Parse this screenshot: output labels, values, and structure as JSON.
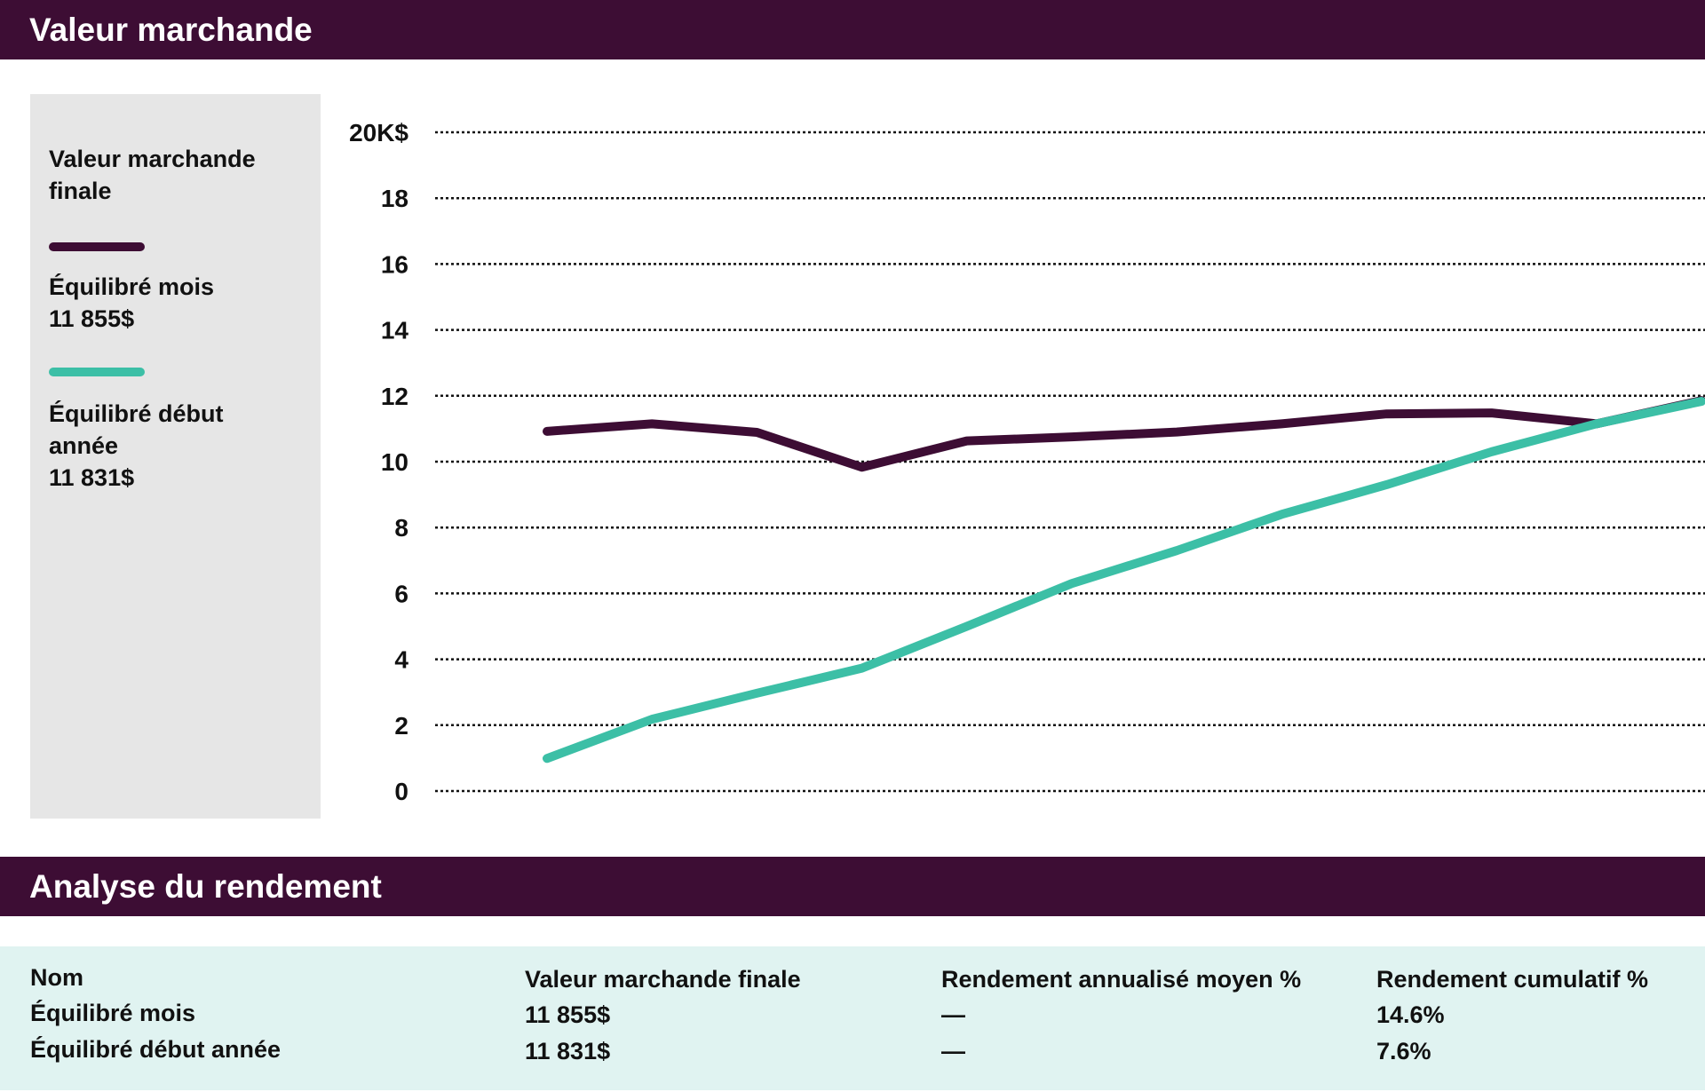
{
  "sections": {
    "market_value": "Valeur marchande",
    "performance": "Analyse du rendement"
  },
  "legend": {
    "title": "Valeur marchande finale",
    "items": [
      {
        "name": "Équilibré mois",
        "value": "11 855$",
        "color": "#3d0d34"
      },
      {
        "name_line1": "Équilibré début",
        "name_line2": "année",
        "value": "11 831$",
        "color": "#3cbfa6"
      }
    ]
  },
  "chart_data": {
    "type": "line",
    "title": "Valeur marchande",
    "ylabel": "",
    "xlabel": "",
    "ylim": [
      0,
      20
    ],
    "y_ticks": [
      "0",
      "2",
      "4",
      "6",
      "8",
      "10",
      "12",
      "14",
      "16",
      "18",
      "20K$"
    ],
    "x": [
      1,
      2,
      3,
      4,
      5,
      6,
      7,
      8,
      9,
      10,
      11,
      12
    ],
    "grid": true,
    "legend_position": "left",
    "series": [
      {
        "name": "Équilibré mois",
        "color": "#3d0d34",
        "values": [
          10.92,
          11.15,
          10.89,
          9.83,
          10.63,
          10.75,
          10.9,
          11.15,
          11.45,
          11.48,
          11.15,
          11.855
        ]
      },
      {
        "name": "Équilibré début année",
        "color": "#3cbfa6",
        "values": [
          0.99,
          2.18,
          2.97,
          3.73,
          5.0,
          6.3,
          7.3,
          8.4,
          9.3,
          10.3,
          11.15,
          11.831
        ]
      }
    ]
  },
  "table": {
    "headers": [
      "Nom",
      "Valeur marchande finale",
      "Rendement annualisé moyen %",
      "Rendement cumulatif %"
    ],
    "rows": [
      [
        "Équilibré mois",
        "11 855$",
        "—",
        "14.6%"
      ],
      [
        "Équilibré début année",
        "11 831$",
        "—",
        "7.6%"
      ]
    ]
  }
}
